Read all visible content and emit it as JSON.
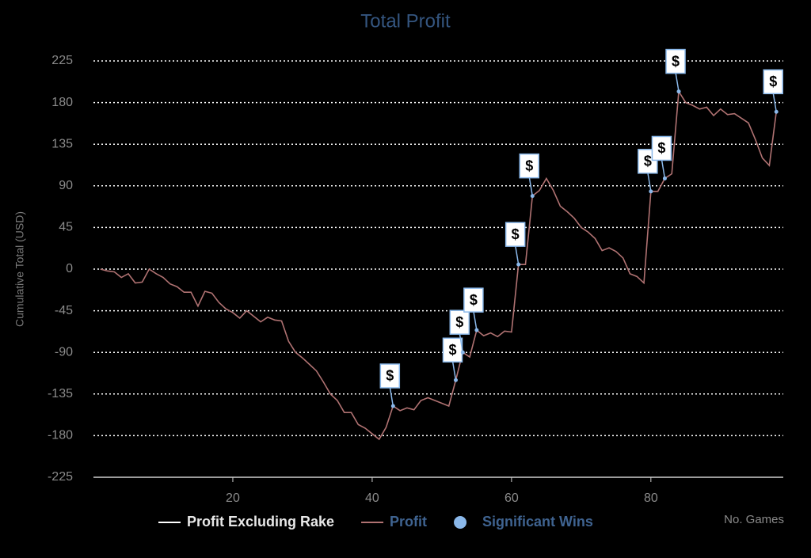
{
  "chart_data": {
    "type": "line",
    "title": "Total Profit",
    "y_label": "Cumulative Total (USD)",
    "x_label": "No. Games",
    "xlim": [
      0,
      99
    ],
    "xticks": [
      20,
      40,
      60,
      80
    ],
    "ylim": [
      -225,
      225
    ],
    "yticks": [
      -225,
      -180,
      -135,
      -90,
      -45,
      0,
      45,
      90,
      135,
      180,
      225
    ],
    "grid": true,
    "legend": "bottom",
    "series": [
      {
        "name": "Profit Excluding Rake",
        "color": "#ffffff"
      },
      {
        "name": "Profit",
        "color": "#b07272",
        "x": [
          1,
          2,
          3,
          4,
          5,
          6,
          7,
          8,
          9,
          10,
          11,
          12,
          13,
          14,
          15,
          16,
          17,
          18,
          19,
          20,
          21,
          22,
          23,
          24,
          25,
          26,
          27,
          28,
          29,
          30,
          31,
          32,
          33,
          34,
          35,
          36,
          37,
          38,
          39,
          40,
          41,
          42,
          43,
          44,
          45,
          46,
          47,
          48,
          49,
          50,
          51,
          52,
          53,
          54,
          55,
          56,
          57,
          58,
          59,
          60,
          61,
          62,
          63,
          64,
          65,
          66,
          67,
          68,
          69,
          70,
          71,
          72,
          73,
          74,
          75,
          76,
          77,
          78,
          79,
          80,
          81,
          82,
          83,
          84,
          85,
          86,
          87,
          88,
          89,
          90,
          91,
          92,
          93,
          94,
          95,
          96,
          97,
          98
        ],
        "values": [
          0,
          -2,
          -3,
          -9,
          -5,
          -15,
          -14,
          0,
          -5,
          -9,
          -16,
          -19,
          -25,
          -25,
          -40,
          -24,
          -26,
          -36,
          -43,
          -47,
          -53,
          -45,
          -51,
          -57,
          -52,
          -55,
          -56,
          -78,
          -90,
          -96,
          -103,
          -110,
          -122,
          -135,
          -142,
          -155,
          -155,
          -168,
          -172,
          -178,
          -184,
          -171,
          -148,
          -153,
          -150,
          -152,
          -142,
          -139,
          -142,
          -145,
          -148,
          -120,
          -90,
          -95,
          -66,
          -72,
          -69,
          -73,
          -67,
          -68,
          5,
          5,
          79,
          85,
          98,
          85,
          68,
          62,
          55,
          45,
          40,
          33,
          20,
          23,
          19,
          12,
          -5,
          -8,
          -15,
          84,
          84,
          98,
          103,
          192,
          180,
          177,
          173,
          175,
          166,
          173,
          167,
          168,
          163,
          158,
          140,
          120,
          112,
          170
        ]
      },
      {
        "name": "Significant Wins",
        "color": "#8ab8ea",
        "marker_label": "$",
        "x": [
          43,
          52,
          53,
          55,
          61,
          63,
          80,
          82,
          84,
          98
        ],
        "values": [
          -148,
          -120,
          -90,
          -66,
          5,
          79,
          84,
          98,
          192,
          170
        ]
      }
    ]
  }
}
